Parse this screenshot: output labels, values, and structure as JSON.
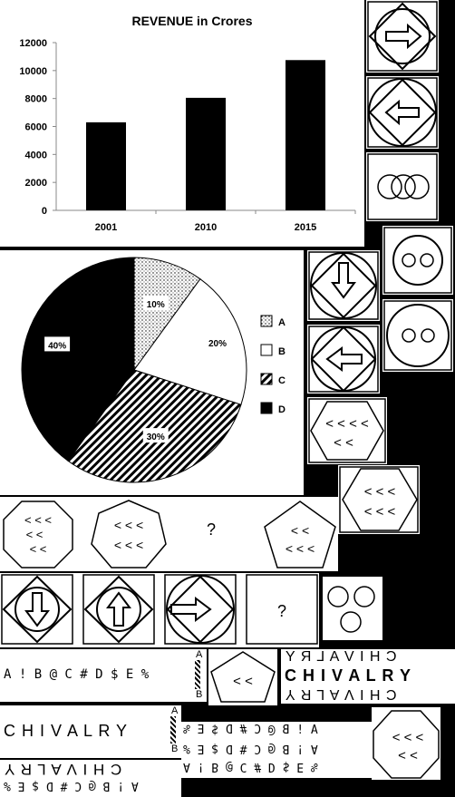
{
  "chart_data": [
    {
      "type": "bar",
      "title": "REVENUE in Crores",
      "categories": [
        "2001",
        "2010",
        "2015"
      ],
      "values": [
        6300,
        8050,
        10750
      ],
      "ylim": [
        0,
        12000
      ],
      "yticks": [
        "0",
        "2000",
        "4000",
        "6000",
        "8000",
        "10000",
        "12000"
      ],
      "grid": false,
      "bar_color": "#000000"
    },
    {
      "type": "pie",
      "slices": [
        {
          "name": "A",
          "value": 10,
          "label": "10%",
          "pattern": "dots"
        },
        {
          "name": "B",
          "value": 20,
          "label": "20%",
          "pattern": "white"
        },
        {
          "name": "C",
          "value": 30,
          "label": "30%",
          "pattern": "diagonal-hatch"
        },
        {
          "name": "D",
          "value": 40,
          "label": "40%",
          "pattern": "black"
        }
      ],
      "legend_position": "right"
    }
  ],
  "puzzle": {
    "question_mark_1": "?",
    "question_mark_2": "?",
    "chevron_rows": {
      "hex_top_1": "< < < <",
      "hex_top_2": "< <",
      "hex2_1": "< < <",
      "hex2_2": "< < <",
      "oct_1": "< < <",
      "oct_2": "< <",
      "oct_3": "< <",
      "hept_1": "< < <",
      "hept_2": "< < <",
      "pent_1": "< <",
      "pent_2": "< < <",
      "pent_small": "< <",
      "oct_br_1": "< < <",
      "oct_br_2": "< <"
    },
    "symbols_text": "A ! B @ C # D $ E %",
    "symbols_mirror": "A ! B @ C # D $ E %",
    "symbols_upside": "A ! B @ C # D $ E %",
    "symbols_rotated": "A ! B @ C # D $ E %",
    "symbols_bottom": "A ! B @ C # D $ E %",
    "chivalry": "C H I V A L R Y",
    "chivalry_flipx": "C H I V A L R Y",
    "chivalry_bold": "C H I V A L R Y",
    "chivalry_flipy": "C H I V A L R Y",
    "chivalry_bottom": "C H I V A L R Y",
    "mirror_label_a": "A",
    "mirror_label_b": "B",
    "mirror_label_a2": "A",
    "mirror_label_b2": "B"
  },
  "colors": {
    "background": "#000000",
    "panel": "#ffffff",
    "ink": "#000000"
  }
}
